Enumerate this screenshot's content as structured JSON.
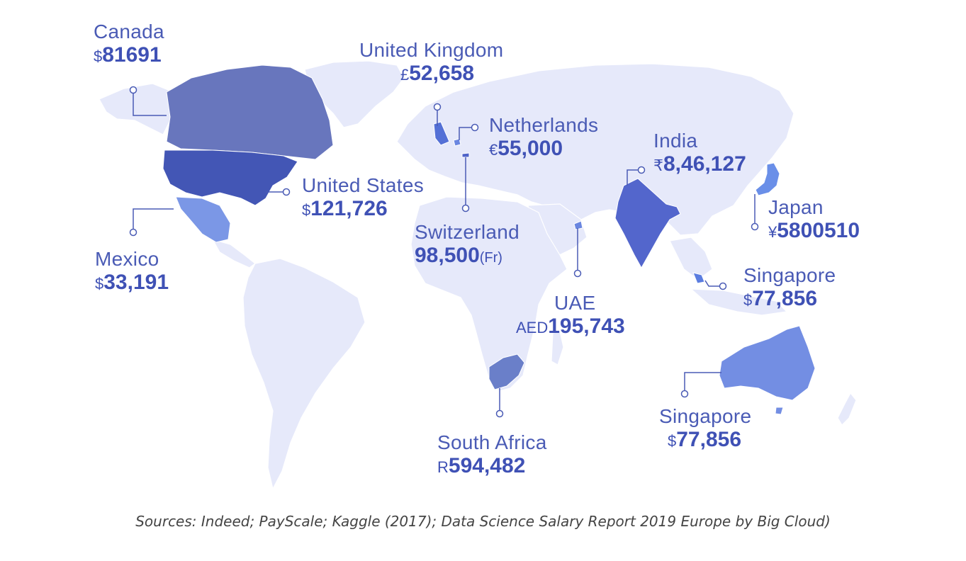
{
  "colors": {
    "land": "#e6e9fa",
    "border": "#ffffff",
    "marker": "#4a5bb5",
    "text": "#4a5bb5"
  },
  "countries": [
    {
      "id": "canada",
      "name": "Canada",
      "currency": "$",
      "value": "81691",
      "suffix": "",
      "fill": "#6876bd"
    },
    {
      "id": "united-kingdom",
      "name": "United Kingdom",
      "currency": "£",
      "value": "52,658",
      "suffix": "",
      "fill": "#5470d6"
    },
    {
      "id": "netherlands",
      "name": "Netherlands",
      "currency": "€",
      "value": "55,000",
      "suffix": "",
      "fill": "#6a86e0"
    },
    {
      "id": "india",
      "name": "India",
      "currency": "₹",
      "value": "8,46,127",
      "suffix": "",
      "fill": "#5366cc"
    },
    {
      "id": "united-states",
      "name": "United States",
      "currency": "$",
      "value": "121,726",
      "suffix": "",
      "fill": "#4356b5"
    },
    {
      "id": "japan",
      "name": "Japan",
      "currency": "¥",
      "value": "5800510",
      "suffix": "",
      "fill": "#6a8fe8"
    },
    {
      "id": "switzerland",
      "name": "Switzerland",
      "currency": "",
      "value": "98,500",
      "suffix": "(Fr)",
      "fill": "#4f63c8"
    },
    {
      "id": "mexico",
      "name": "Mexico",
      "currency": "$",
      "value": "33,191",
      "suffix": "",
      "fill": "#7b97e6"
    },
    {
      "id": "singapore",
      "name": "Singapore",
      "currency": "$",
      "value": "77,856",
      "suffix": "",
      "fill": "#5b7de0"
    },
    {
      "id": "uae",
      "name": "UAE",
      "currency": "AED",
      "value": "195,743",
      "suffix": "",
      "fill": "#6a86e0"
    },
    {
      "id": "australia",
      "name": "Singapore",
      "currency": "$",
      "value": "77,856",
      "suffix": "",
      "fill": "#738ee3"
    },
    {
      "id": "south-africa",
      "name": "South Africa",
      "currency": "R",
      "value": "594,482",
      "suffix": "",
      "fill": "#6a7fc9"
    }
  ],
  "source": "Sources: Indeed; PayScale; Kaggle (2017); Data Science Salary Report 2019 Europe by Big Cloud)"
}
